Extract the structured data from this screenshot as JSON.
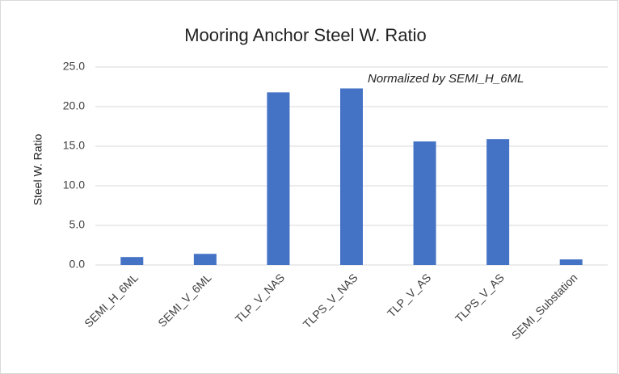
{
  "chart_data": {
    "type": "bar",
    "title": "Mooring Anchor Steel W. Ratio",
    "annotation": "Normalized by SEMI_H_6ML",
    "y_label": "Steel W. Ratio",
    "categories": [
      "SEMI_H_6ML",
      "SEMI_V_6ML",
      "TLP_V_NAS",
      "TLPS_V_NAS",
      "TLP_V_AS",
      "TLPS_V_AS",
      "SEMI_Substation"
    ],
    "values": [
      1.0,
      1.4,
      21.8,
      22.3,
      15.6,
      15.9,
      0.7
    ],
    "color": "#4472c4",
    "ylim": [
      0,
      25
    ],
    "yticks": [
      {
        "value": 0,
        "label": "0.0"
      },
      {
        "value": 5,
        "label": "5.0"
      },
      {
        "value": 10,
        "label": "10.0"
      },
      {
        "value": 15,
        "label": "15.0"
      },
      {
        "value": 20,
        "label": "20.0"
      },
      {
        "value": 25,
        "label": "25.0"
      }
    ],
    "grid": true
  }
}
